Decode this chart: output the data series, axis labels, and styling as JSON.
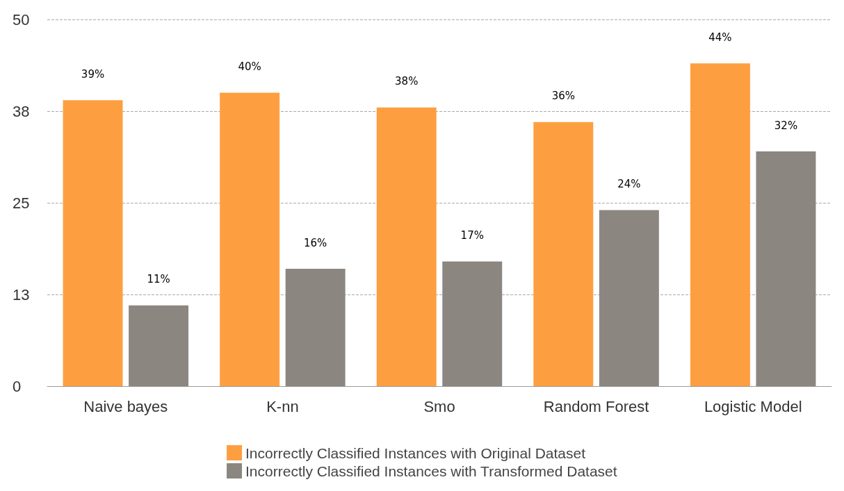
{
  "chart_data": {
    "type": "bar",
    "categories": [
      "Naive bayes",
      "K-nn",
      "Smo",
      "Random Forest",
      "Logistic Model"
    ],
    "series": [
      {
        "name": "Incorrectly Classified Instances with Original Dataset",
        "color": "#fd9f40",
        "values": [
          39,
          40,
          38,
          36,
          44
        ],
        "value_labels": [
          "39%",
          "40%",
          "38%",
          "36%",
          "44%"
        ]
      },
      {
        "name": "Incorrectly Classified Instances with Transformed Dataset",
        "color": "#8b8680",
        "values": [
          11,
          16,
          17,
          24,
          32
        ],
        "value_labels": [
          "11%",
          "16%",
          "17%",
          "24%",
          "32%"
        ]
      }
    ],
    "ylim": [
      0,
      50
    ],
    "yticks": [
      0,
      {
        "value": 12.5,
        "label": "13"
      },
      25,
      {
        "value": 37.5,
        "label": "38"
      },
      50
    ],
    "grid": "y",
    "legend": "bottom"
  }
}
